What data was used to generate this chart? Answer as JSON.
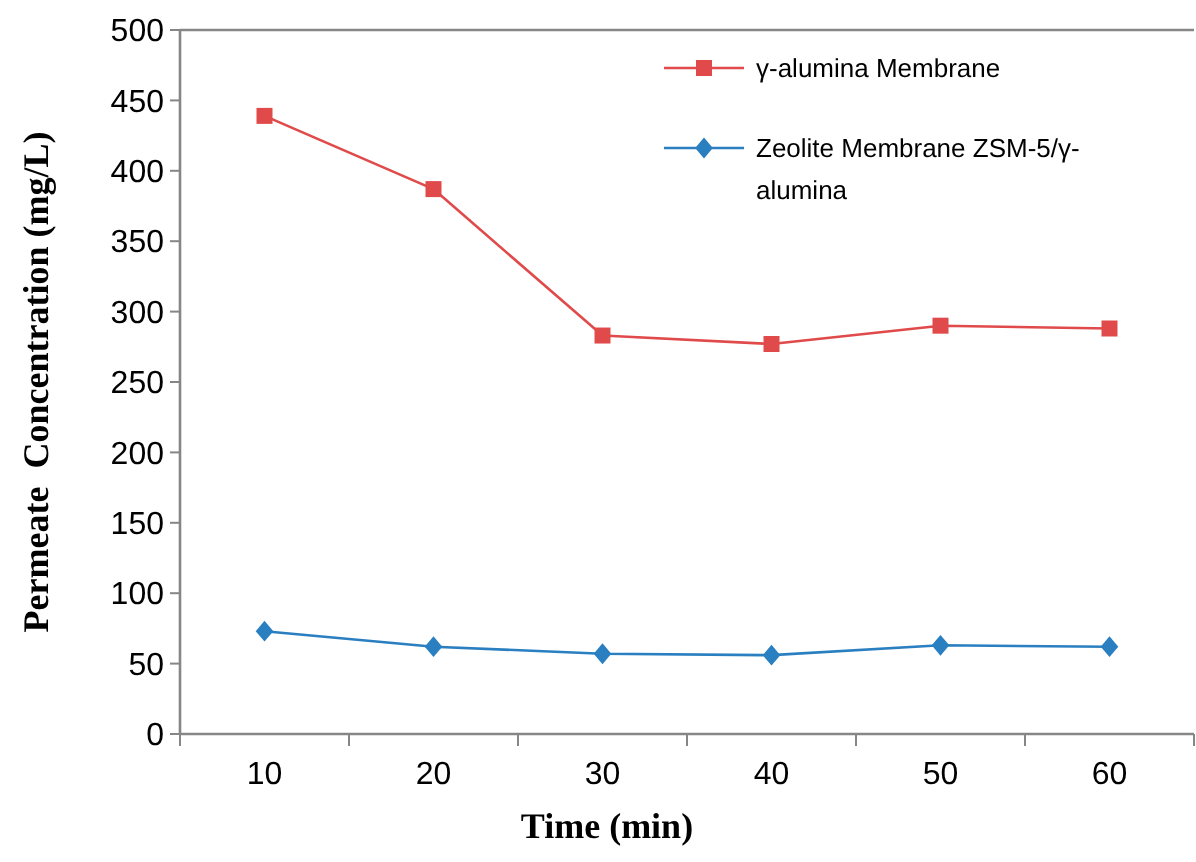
{
  "chart_data": {
    "type": "line",
    "xlabel": "Time (min)",
    "ylabel": "Permeate  Concentration (mg/L)",
    "categories": [
      "10",
      "20",
      "30",
      "40",
      "50",
      "60"
    ],
    "series": [
      {
        "name": "γ-alumina Membrane",
        "color": "#e04a4a",
        "marker": "square",
        "values": [
          439,
          387,
          283,
          277,
          290,
          288
        ]
      },
      {
        "name": "Zeolite Membrane ZSM-5/γ-alumina",
        "color": "#2a7fc0",
        "marker": "diamond",
        "values": [
          73,
          62,
          57,
          56,
          63,
          62
        ]
      }
    ],
    "ylim": [
      0,
      500
    ],
    "yticks": [
      0,
      50,
      100,
      150,
      200,
      250,
      300,
      350,
      400,
      450,
      500
    ],
    "grid": false,
    "legend": "top right"
  }
}
